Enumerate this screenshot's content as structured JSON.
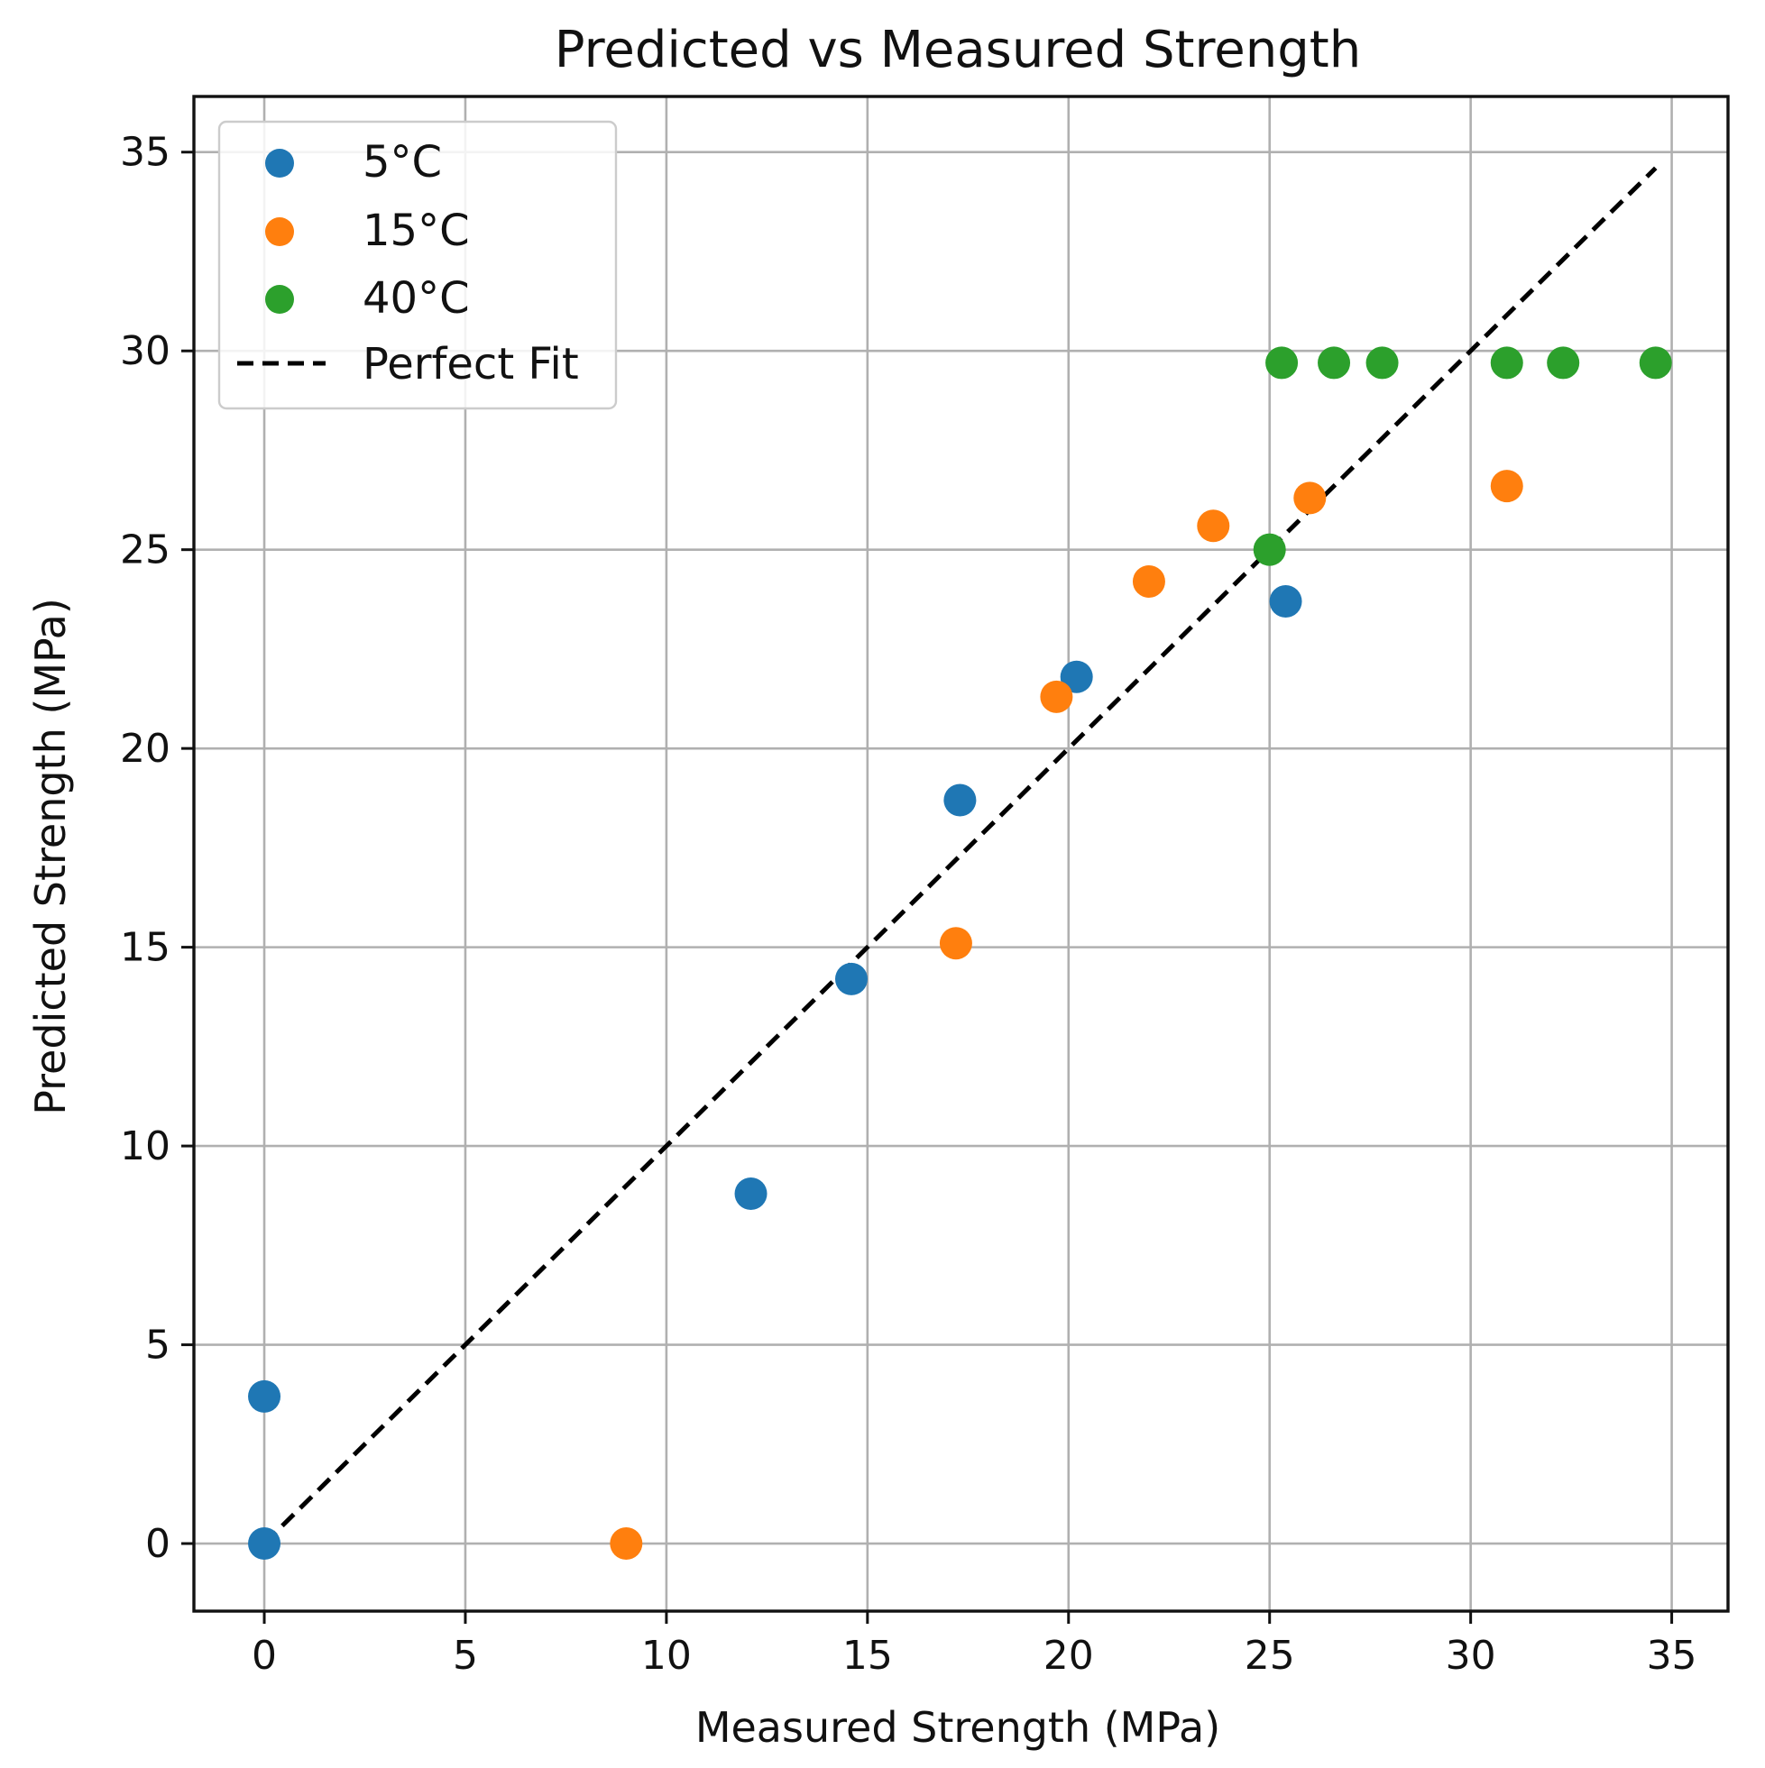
{
  "chart_data": {
    "type": "scatter",
    "title": "Predicted vs Measured Strength",
    "xlabel": "Measured Strength (MPa)",
    "ylabel": "Predicted Strength (MPa)",
    "xlim": [
      -1.75,
      36.4
    ],
    "ylim": [
      -1.7,
      36.4
    ],
    "xticks": [
      0,
      5,
      10,
      15,
      20,
      25,
      30,
      35
    ],
    "yticks": [
      0,
      5,
      10,
      15,
      20,
      25,
      30,
      35
    ],
    "xtick_labels": [
      "0",
      "5",
      "10",
      "15",
      "20",
      "25",
      "30",
      "35"
    ],
    "ytick_labels": [
      "0",
      "5",
      "10",
      "15",
      "20",
      "25",
      "30",
      "35"
    ],
    "grid": true,
    "legend_position": "top-left",
    "series": [
      {
        "name": "5°C",
        "color": "#1f77b4",
        "x": [
          0,
          0,
          12.1,
          14.6,
          17.3,
          20.2,
          25.4
        ],
        "y": [
          0,
          3.7,
          8.8,
          14.2,
          18.7,
          21.8,
          23.7
        ]
      },
      {
        "name": "15°C",
        "color": "#ff7f0e",
        "x": [
          9.0,
          17.2,
          19.7,
          22.0,
          23.6,
          26.0,
          30.9
        ],
        "y": [
          0,
          15.1,
          21.3,
          24.2,
          25.6,
          26.3,
          26.6
        ]
      },
      {
        "name": "40°C",
        "color": "#2ca02c",
        "x": [
          25.0,
          25.3,
          26.6,
          27.8,
          30.9,
          32.3,
          34.6
        ],
        "y": [
          25.0,
          29.7,
          29.7,
          29.7,
          29.7,
          29.7,
          29.7
        ]
      }
    ],
    "reference_line": {
      "name": "Perfect Fit",
      "color": "#000000",
      "style": "dashed",
      "x": [
        0,
        34.6
      ],
      "y": [
        0,
        34.6
      ]
    }
  }
}
